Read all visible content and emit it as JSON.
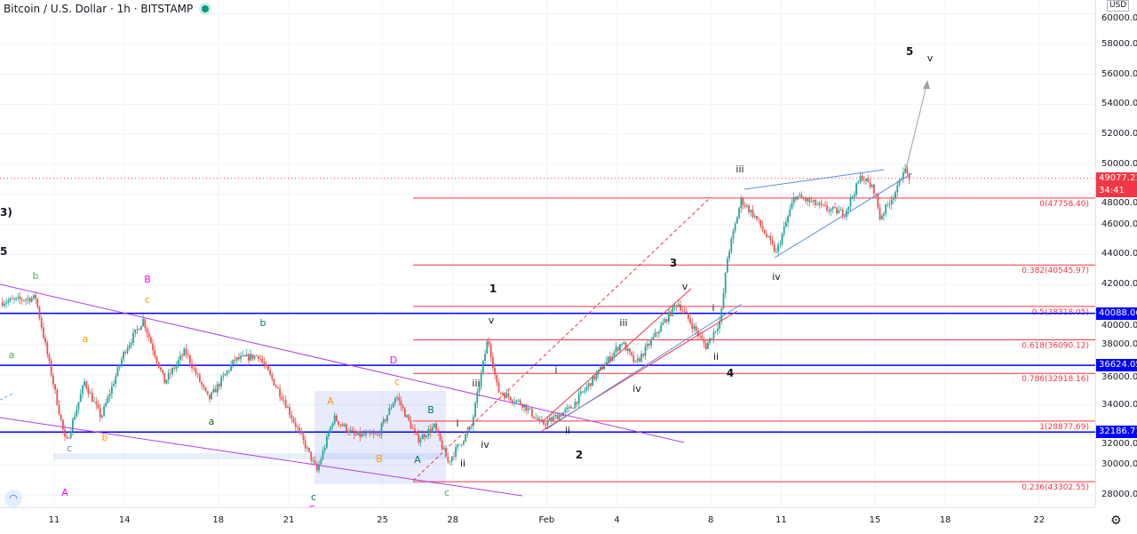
{
  "header": {
    "title": "Bitcoin / U.S. Dollar · 1h · BITSTAMP",
    "status_color": "#089981"
  },
  "axis": {
    "currency": "USD",
    "y_ticks": [
      "60000.00",
      "58000.00",
      "56000.00",
      "54000.00",
      "52000.00",
      "50000.00",
      "48000.00",
      "46000.00",
      "44000.00",
      "42000.00",
      "40000.00",
      "38000.00",
      "36000.00",
      "34000.00",
      "32000.00",
      "30000.00",
      "28000.00"
    ],
    "x_ticks": [
      "11",
      "14",
      "18",
      "21",
      "25",
      "28",
      "Feb",
      "4",
      "8",
      "11",
      "15",
      "18",
      "22"
    ]
  },
  "price_tags": {
    "last_price": "49077.21",
    "countdown": "34:41",
    "levels": [
      "40088.06",
      "36624.05",
      "32186.71"
    ],
    "last_color": "#f23645",
    "level_color": "#0000ff"
  },
  "fib_levels": [
    "0(47758.40)",
    "0.236(43302.55)",
    "0.382(40545.97)",
    "0.5(38318.05)",
    "0.618(36090.12)",
    "0.786(32918.16)",
    "1(28877.69)"
  ],
  "wave_labels": [
    {
      "t": "3)",
      "c": "#131722"
    },
    {
      "t": "5",
      "c": "#131722"
    },
    {
      "t": "b",
      "c": "#4caf50"
    },
    {
      "t": "a",
      "c": "#4caf50"
    },
    {
      "t": "c",
      "c": "#4caf50"
    },
    {
      "t": "A",
      "c": "#ff00ff"
    },
    {
      "t": "a",
      "c": "#ff9800"
    },
    {
      "t": "b",
      "c": "#ff9800"
    },
    {
      "t": "B",
      "c": "#ff00ff"
    },
    {
      "t": "c",
      "c": "#ff9800"
    },
    {
      "t": "b",
      "c": "#00796b"
    },
    {
      "t": "a",
      "c": "#1b5e20"
    },
    {
      "t": "c",
      "c": "#00796b"
    },
    {
      "t": "C",
      "c": "#ff00ff"
    },
    {
      "t": "D",
      "c": "#ff00ff"
    },
    {
      "t": "c",
      "c": "#ff9800"
    },
    {
      "t": "A",
      "c": "#ff9800"
    },
    {
      "t": "B",
      "c": "#ff9800"
    },
    {
      "t": "A",
      "c": "#00796b"
    },
    {
      "t": "B",
      "c": "#00796b"
    },
    {
      "t": "c",
      "c": "#4caf50"
    },
    {
      "t": "E",
      "c": "#ff00ff"
    },
    {
      "t": "ii",
      "c": "#131722"
    },
    {
      "t": "i",
      "c": "#131722"
    },
    {
      "t": "iii",
      "c": "#131722"
    },
    {
      "t": "iv",
      "c": "#131722"
    },
    {
      "t": "v",
      "c": "#131722"
    },
    {
      "t": "1",
      "c": "#131722"
    },
    {
      "t": "2",
      "c": "#131722"
    },
    {
      "t": "i",
      "c": "#131722"
    },
    {
      "t": "ii",
      "c": "#131722"
    },
    {
      "t": "iii",
      "c": "#131722"
    },
    {
      "t": "iv",
      "c": "#131722"
    },
    {
      "t": "v",
      "c": "#131722"
    },
    {
      "t": "3",
      "c": "#131722"
    },
    {
      "t": "i",
      "c": "#131722"
    },
    {
      "t": "ii",
      "c": "#131722"
    },
    {
      "t": "4",
      "c": "#131722"
    },
    {
      "t": "iii",
      "c": "#131722"
    },
    {
      "t": "iv",
      "c": "#131722"
    },
    {
      "t": "5",
      "c": "#131722"
    },
    {
      "t": "v",
      "c": "#131722"
    }
  ],
  "chart_data": {
    "type": "candlestick",
    "symbol": "Bitcoin / U.S. Dollar",
    "interval": "1h",
    "exchange": "BITSTAMP",
    "ylim": [
      25500,
      60500
    ],
    "colors": {
      "up": "#26a69a",
      "down": "#ef5350"
    },
    "price_path": [
      [
        "01-08 17:00",
        40830
      ],
      [
        "01-10 05:00",
        41130
      ],
      [
        "01-10 19:00",
        36700
      ],
      [
        "01-11 12:00",
        31370
      ],
      [
        "01-12 07:00",
        35510
      ],
      [
        "01-13 00:00",
        33150
      ],
      [
        "01-14 00:00",
        37580
      ],
      [
        "01-14 19:00",
        39650
      ],
      [
        "01-15 17:00",
        35510
      ],
      [
        "01-16 14:00",
        37580
      ],
      [
        "01-17 14:00",
        34330
      ],
      [
        "01-18 17:00",
        36990
      ],
      [
        "01-19 17:00",
        37290
      ],
      [
        "01-20 19:00",
        34330
      ],
      [
        "01-22 05:00",
        29600
      ],
      [
        "01-22 22:00",
        33150
      ],
      [
        "01-23 19:00",
        31960
      ],
      [
        "01-24 19:00",
        31960
      ],
      [
        "01-25 14:00",
        34620
      ],
      [
        "01-26 12:00",
        31670
      ],
      [
        "01-27 05:00",
        32550
      ],
      [
        "01-27 19:00",
        30190
      ],
      [
        "01-28 19:00",
        32550
      ],
      [
        "01-29 12:00",
        38470
      ],
      [
        "01-29 22:00",
        34920
      ],
      [
        "01-31 00:00",
        34030
      ],
      [
        "01-31 19:00",
        32670
      ],
      [
        "02-02 00:00",
        33740
      ],
      [
        "02-04 05:00",
        38170
      ],
      [
        "02-04 19:00",
        36700
      ],
      [
        "02-06 14:00",
        40830
      ],
      [
        "02-07 19:00",
        37880
      ],
      [
        "02-08 10:00",
        39650
      ],
      [
        "02-08 17:00",
        43790
      ],
      [
        "02-09 07:00",
        47630
      ],
      [
        "02-09 22:00",
        46450
      ],
      [
        "02-10 19:00",
        44090
      ],
      [
        "02-11 14:00",
        47930
      ],
      [
        "02-12 22:00",
        47040
      ],
      [
        "02-13 17:00",
        46750
      ],
      [
        "02-14 10:00",
        49230
      ],
      [
        "02-15 00:00",
        48230
      ],
      [
        "02-15 05:00",
        46450
      ],
      [
        "02-16 00:00",
        48520
      ],
      [
        "02-16 05:00",
        49700
      ],
      [
        "02-16 12:00",
        49077.21
      ]
    ],
    "horizontal_levels": [
      40088.06,
      36624.05,
      32186.71
    ],
    "fib_retracement": {
      "0": 47758.4,
      "0.236": 43302.55,
      "0.382": 40545.97,
      "0.5": 38318.05,
      "0.618": 36090.12,
      "0.786": 32918.16,
      "1": 28877.69
    }
  }
}
